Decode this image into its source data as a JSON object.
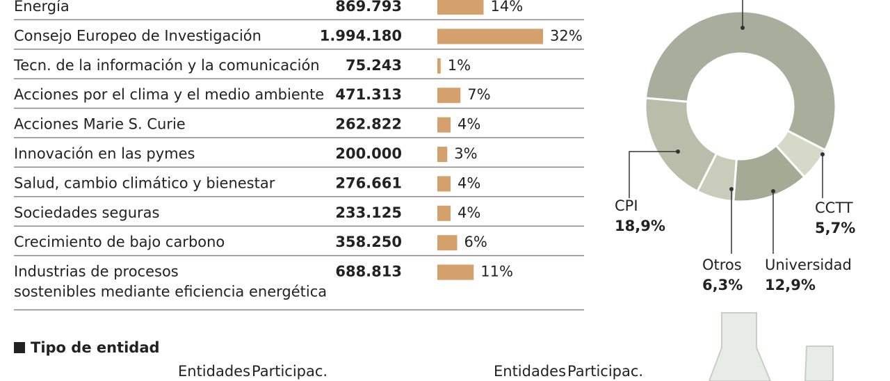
{
  "chart_data": [
    {
      "type": "bar",
      "orientation": "horizontal",
      "categories": [
        "Energía",
        "Consejo Europeo de Investigación",
        "Tecn. de la información y la comunicación",
        "Acciones por el clima y el medio ambiente",
        "Acciones Marie S. Curie",
        "Innovación en las pymes",
        "Salud, cambio climático y bienestar",
        "Sociedades seguras",
        "Crecimiento de bajo carbono",
        "Industrias de procesos sostenibles mediante eficiencia energética"
      ],
      "amounts": [
        {
          "value": 869793,
          "label": "869.793"
        },
        {
          "value": 1994180,
          "label": "1.994.180"
        },
        {
          "value": 75243,
          "label": "75.243"
        },
        {
          "value": 471313,
          "label": "471.313"
        },
        {
          "value": 262822,
          "label": "262.822"
        },
        {
          "value": 200000,
          "label": "200.000"
        },
        {
          "value": 276661,
          "label": "276.661"
        },
        {
          "value": 233125,
          "label": "233.125"
        },
        {
          "value": 358250,
          "label": "358.250"
        },
        {
          "value": 688813,
          "label": "688.813"
        }
      ],
      "values": [
        14,
        32,
        1,
        7,
        4,
        3,
        4,
        4,
        6,
        11
      ],
      "value_labels": [
        "14%",
        "32%",
        "1%",
        "7%",
        "4%",
        "3%",
        "4%",
        "4%",
        "6%",
        "11%"
      ],
      "color": "#d4a06c"
    },
    {
      "type": "pie",
      "donut": true,
      "categories": [
        null,
        "CCTT",
        "Universidad",
        "Otros",
        "CPI"
      ],
      "values": [
        56.2,
        5.7,
        12.9,
        6.3,
        18.9
      ],
      "value_labels": [
        null,
        "5,7%",
        "12,9%",
        "6,3%",
        "18,9%"
      ],
      "colors": [
        "#a9ad9b",
        "#d6d8c8",
        "#a5aa95",
        "#c9ccbb",
        "#b9bda9"
      ]
    }
  ],
  "section": {
    "title": "Tipo de entidad",
    "columns": [
      "Entidades",
      "Participac.",
      "Entidades",
      "Participac."
    ]
  }
}
